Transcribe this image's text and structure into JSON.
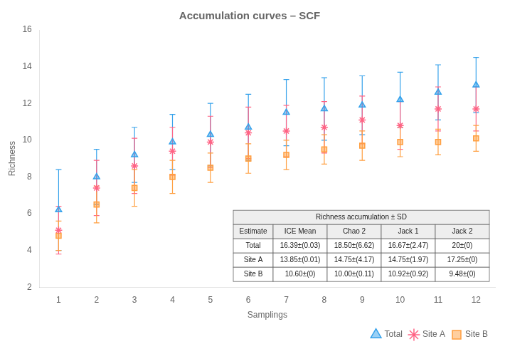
{
  "chart_data": {
    "type": "scatter",
    "title": "Accumulation curves – SCF",
    "xlabel": "Samplings",
    "ylabel": "Richness",
    "x": [
      1,
      2,
      3,
      4,
      5,
      6,
      7,
      8,
      9,
      10,
      11,
      12
    ],
    "xlim": [
      0.5,
      12.5
    ],
    "xticks": [
      1,
      2,
      3,
      4,
      5,
      6,
      7,
      8,
      9,
      10,
      11,
      12
    ],
    "ylim": [
      2,
      16
    ],
    "yticks": [
      2,
      4,
      6,
      8,
      10,
      12,
      14,
      16
    ],
    "grid": false,
    "legend": "lower right",
    "series": [
      {
        "name": "Total",
        "marker": "triangle",
        "values": [
          6.2,
          8.0,
          9.2,
          9.9,
          10.3,
          10.7,
          11.5,
          11.7,
          11.9,
          12.2,
          12.6,
          13.0
        ],
        "sd": [
          2.2,
          1.5,
          1.5,
          1.5,
          1.7,
          1.8,
          1.8,
          1.7,
          1.6,
          1.5,
          1.5,
          1.5
        ]
      },
      {
        "name": "Site A",
        "marker": "star",
        "values": [
          5.1,
          7.4,
          8.6,
          9.4,
          9.9,
          10.4,
          10.5,
          10.7,
          11.1,
          10.8,
          11.7,
          11.7
        ],
        "sd": [
          1.3,
          1.5,
          1.5,
          1.3,
          1.4,
          1.4,
          1.4,
          1.4,
          1.3,
          1.3,
          1.2,
          1.2
        ]
      },
      {
        "name": "Site B",
        "marker": "square",
        "values": [
          4.8,
          6.5,
          7.4,
          8.0,
          8.5,
          9.0,
          9.2,
          9.5,
          9.7,
          9.9,
          9.9,
          10.1
        ],
        "sd": [
          0.8,
          1.0,
          1.0,
          0.9,
          0.8,
          0.8,
          0.8,
          0.8,
          0.8,
          0.8,
          0.7,
          0.7
        ]
      }
    ],
    "table": {
      "title": "Richness accumulation ± SD",
      "headers": [
        "Estimate",
        "ICE Mean",
        "Chao 2",
        "Jack 1",
        "Jack 2"
      ],
      "rows": [
        [
          "Total",
          "16.39±(0.03)",
          "18.50±(6.62)",
          "16.67±(2.47)",
          "20±(0)"
        ],
        [
          "Site A",
          "13.85±(0.01)",
          "14.75±(4.17)",
          "14.75±(1.97)",
          "17.25±(0)"
        ],
        [
          "Site B",
          "10.60±(0)",
          "10.00±(0.11)",
          "10.92±(0.92)",
          "9.48±(0)"
        ]
      ]
    }
  }
}
